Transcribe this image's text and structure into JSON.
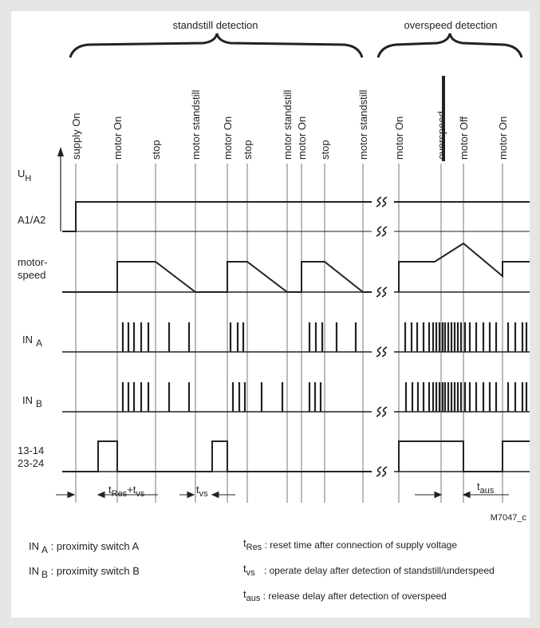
{
  "headings": {
    "standstill": "standstill detection",
    "overspeed": "overspeed detection"
  },
  "events": [
    {
      "label": "supply On",
      "t": 95
    },
    {
      "label": "motor On",
      "t": 147
    },
    {
      "label": "stop",
      "t": 195
    },
    {
      "label": "motor standstill",
      "t": 245
    },
    {
      "label": "motor On",
      "t": 285
    },
    {
      "label": "stop",
      "t": 310
    },
    {
      "label": "motor standstill",
      "t": 360
    },
    {
      "label": "motor On",
      "t": 378
    },
    {
      "label": "stop",
      "t": 407
    },
    {
      "label": "motor standstill",
      "t": 455
    },
    {
      "label": "motor On",
      "t": 500
    },
    {
      "label": "overspeed",
      "t": 553
    },
    {
      "label": "motor Off",
      "t": 581
    },
    {
      "label": "motor On",
      "t": 630
    }
  ],
  "signals": {
    "uh": {
      "symbol": "U",
      "subscript": "H"
    },
    "a1a2": "A1/A2",
    "motorspeed": [
      "motor-",
      "speed"
    ],
    "in_a": {
      "symbol": "IN",
      "subscript": "A"
    },
    "in_b": {
      "symbol": "IN",
      "subscript": "B"
    },
    "outputs": [
      "13-14",
      "23-24"
    ]
  },
  "timing_labels": {
    "t_res": "t",
    "t_res_sub": "Res",
    "plus": "+",
    "t_vs": "t",
    "t_vs_sub": "vs",
    "t_vs2": "t",
    "t_vs2_sub": "vs",
    "t_aus": "t",
    "t_aus_sub": "aus"
  },
  "figure_id": "M7047_c",
  "legend": {
    "left": [
      {
        "sym": "IN",
        "sub": "A",
        "text": " : proximity switch A"
      },
      {
        "sym": "IN",
        "sub": "B",
        "text": " : proximity switch B"
      }
    ],
    "right": [
      {
        "sym": "t",
        "sub": "Res",
        "text": " : reset time after connection of supply voltage"
      },
      {
        "sym": "t",
        "sub": "vs",
        "text": " : operate delay after detection of standstill/underspeed"
      },
      {
        "sym": "t",
        "sub": "aus",
        "text": " : release delay after detection of overspeed"
      }
    ]
  },
  "colors": {
    "background": "#e6e6e6",
    "panel": "#ffffff",
    "line": "#222222"
  }
}
